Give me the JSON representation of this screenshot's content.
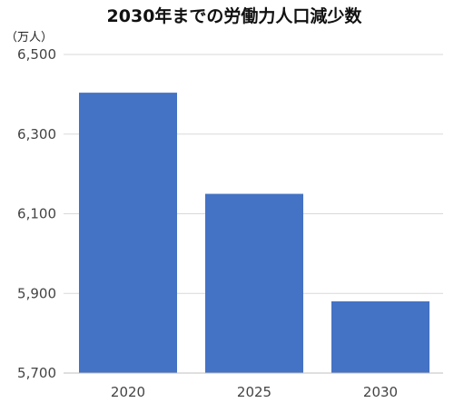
{
  "chart_data": {
    "type": "bar",
    "title": "2030年までの労働力人口減少数",
    "ylabel": "（万人）",
    "xlabel": "",
    "categories": [
      "2020",
      "2025",
      "2030"
    ],
    "values": [
      6404,
      6150,
      5880
    ],
    "ylim": [
      5700,
      6500
    ],
    "yticks": [
      5700,
      5900,
      6100,
      6300,
      6500
    ],
    "ytick_labels": [
      "5,700",
      "5,900",
      "6,100",
      "6,300",
      "6,500"
    ],
    "bar_color": "#4472c4",
    "grid": true,
    "legend": "none"
  }
}
